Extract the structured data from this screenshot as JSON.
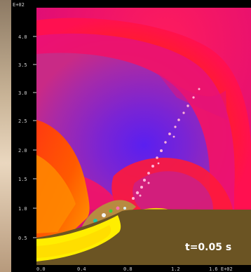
{
  "figure": {
    "time_label": "t=0.05 s",
    "exponent_label": "E+02",
    "y_ticks": [
      "4.0",
      "3.5",
      "3.0",
      "2.5",
      "2.0",
      "1.5",
      "1.0",
      "0.5"
    ],
    "x_ticks": [
      "0.0",
      "0.4",
      "0.8",
      "1.2",
      "1.6 E+02"
    ]
  },
  "colors": {
    "ambient": "#e8106a",
    "shock_front": "#ff2020",
    "interior": "#8a25c4",
    "core": "#6b22e0",
    "hot_jet": "#ffb000",
    "crust": "#fff000",
    "ground": "#6b5423"
  }
}
